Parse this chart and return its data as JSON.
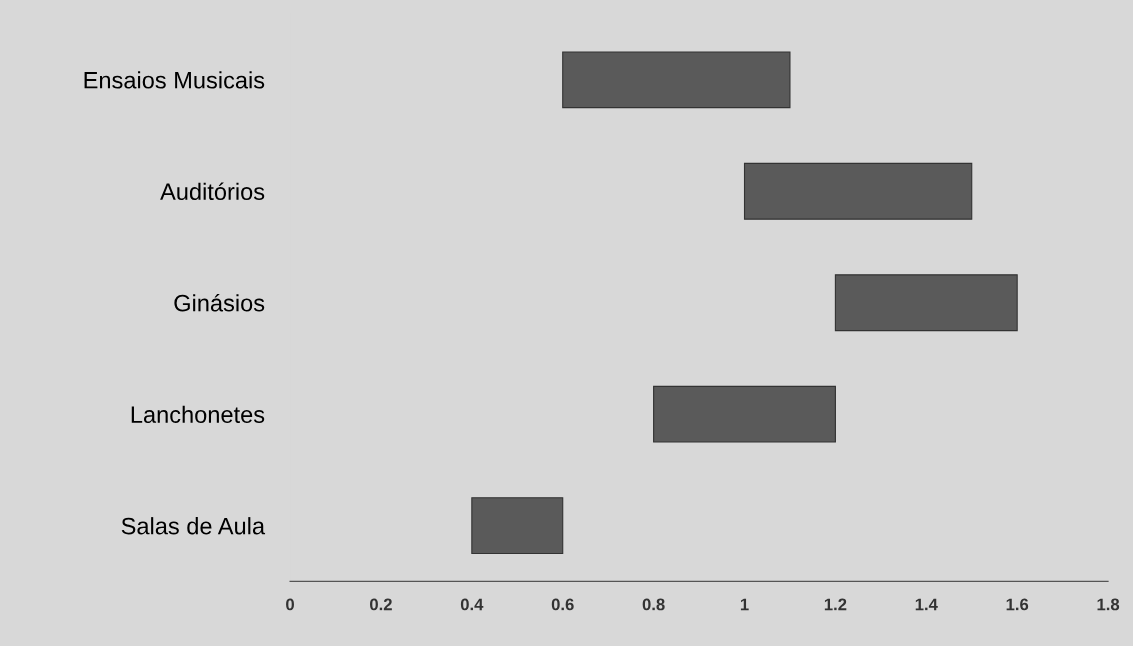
{
  "chart_data": {
    "type": "bar",
    "orientation": "horizontal",
    "categories": [
      "Ensaios Musicais",
      "Auditórios",
      "Ginásios",
      "Lanchonetes",
      "Salas de Aula"
    ],
    "base": [
      0.6,
      1.0,
      1.2,
      0.8,
      0.4
    ],
    "values": [
      0.5,
      0.5,
      0.4,
      0.4,
      0.2
    ],
    "color": "#5a5a5a",
    "xlim": [
      0,
      1.8
    ],
    "xticks": [
      0,
      0.2,
      0.4,
      0.6,
      0.8,
      1,
      1.2,
      1.4,
      1.6,
      1.8
    ],
    "grid": false,
    "legend": false
  }
}
